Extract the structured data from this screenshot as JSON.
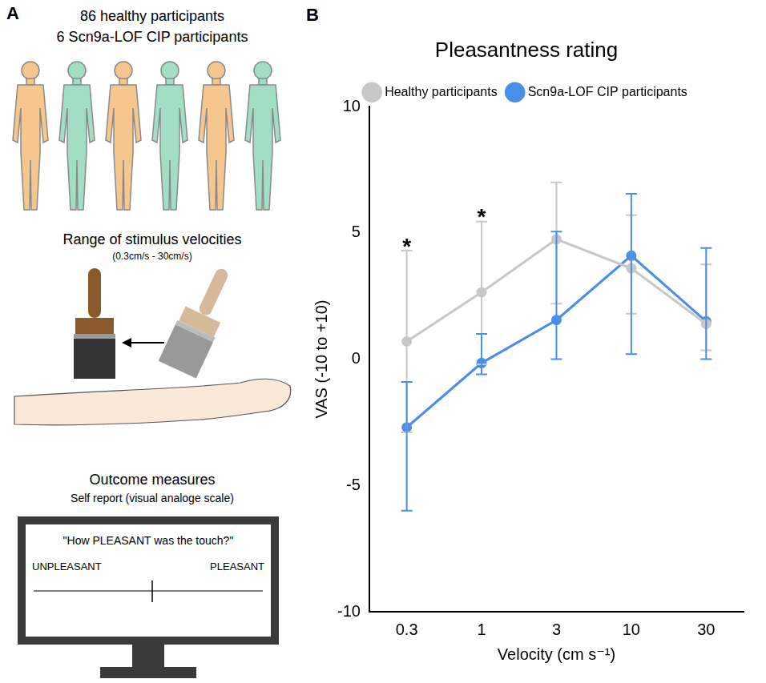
{
  "panel_a": {
    "letter": "A",
    "participants": [
      "86 healthy participants",
      "6 Scn9a-LOF CIP participants"
    ],
    "stimulus": {
      "title": "Range of stimulus velocities",
      "subtitle": "(0.3cm/s - 30cm/s)"
    },
    "outcome": {
      "title": "Outcome measures",
      "subtitle": "Self report (visual analoge scale)",
      "question": "\"How PLEASANT was the touch?\"",
      "scale_left": "UNPLEASANT",
      "scale_right": "PLEASANT"
    }
  },
  "chart_data": {
    "letter": "B",
    "type": "line",
    "title": "Pleasantness rating",
    "x_label": "Velocity (cm s⁻¹)",
    "y_label": "VAS (-10 to +10)",
    "categories": [
      "0.3",
      "1",
      "3",
      "10",
      "30"
    ],
    "ylim": [
      -10,
      10
    ],
    "yticks": [
      -10,
      -5,
      0,
      5,
      10
    ],
    "grid": false,
    "legend": "top",
    "marker": "circle",
    "series": [
      {
        "name": "Healthy participants",
        "color": "#c8c8c8",
        "values": [
          0.7,
          2.65,
          4.75,
          3.6,
          1.4
        ],
        "lower": [
          -2.9,
          -0.2,
          2.2,
          1.8,
          0.35
        ],
        "upper": [
          4.3,
          5.45,
          7.0,
          5.7,
          3.75
        ]
      },
      {
        "name": "Scn9a-LOF CIP participants",
        "color": "#4a8fe7",
        "values": [
          -2.7,
          -0.15,
          1.55,
          4.1,
          1.5
        ],
        "lower": [
          -6.0,
          -0.6,
          0.0,
          0.2,
          0.0
        ],
        "upper": [
          -0.9,
          1.0,
          5.05,
          6.55,
          4.4
        ]
      }
    ],
    "annotations": [
      {
        "x": "0.3",
        "text": "*"
      },
      {
        "x": "1",
        "text": "*"
      }
    ]
  }
}
